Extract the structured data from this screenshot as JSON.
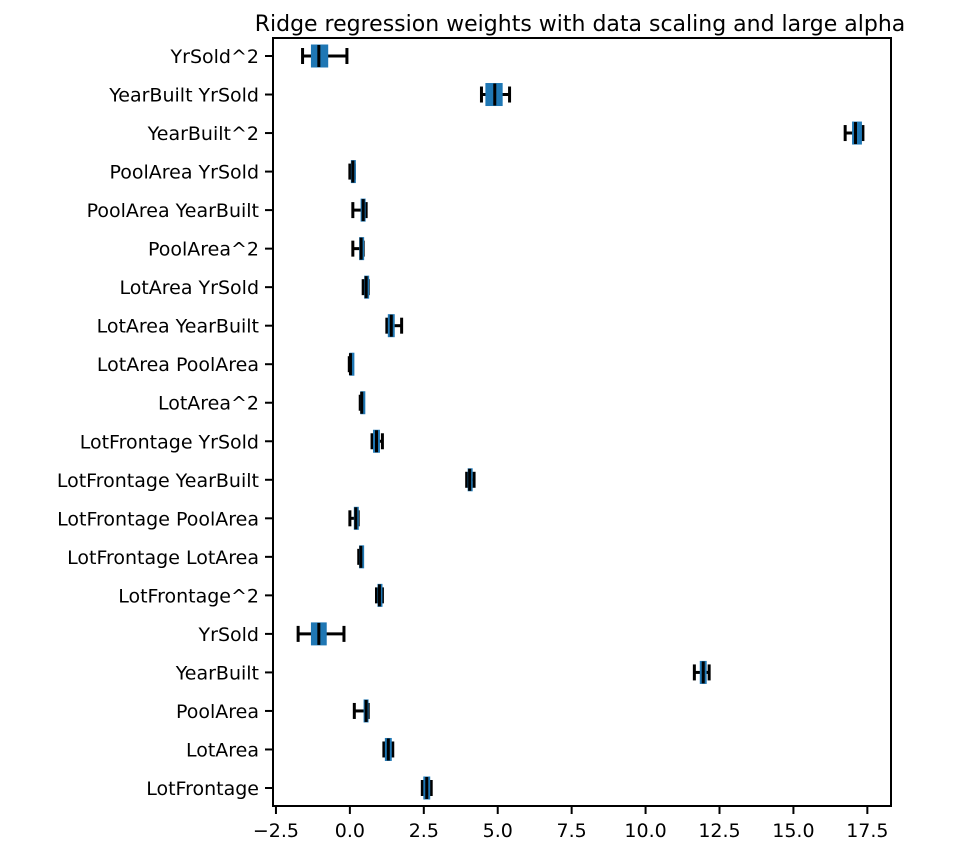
{
  "chart_data": {
    "type": "box",
    "orientation": "horizontal",
    "title": "Ridge regression weights with data scaling and large alpha",
    "xlabel": "",
    "ylabel": "",
    "xlim": [
      -2.6,
      18.3
    ],
    "xticks": [
      -2.5,
      0.0,
      2.5,
      5.0,
      7.5,
      10.0,
      12.5,
      15.0,
      17.5
    ],
    "xtick_labels": [
      "−2.5",
      "0.0",
      "2.5",
      "5.0",
      "7.5",
      "10.0",
      "12.5",
      "15.0",
      "17.5"
    ],
    "box_color": "#1f77b4",
    "whisker_color": "#000000",
    "grid": false,
    "categories": [
      {
        "name": "YrSold^2",
        "whislo": -1.6,
        "q1": -1.3,
        "med": -1.05,
        "q3": -0.75,
        "whishi": -0.1
      },
      {
        "name": "YearBuilt YrSold",
        "whislo": 4.45,
        "q1": 4.6,
        "med": 4.9,
        "q3": 5.15,
        "whishi": 5.4
      },
      {
        "name": "YearBuilt^2",
        "whislo": 16.75,
        "q1": 17.0,
        "med": 17.1,
        "q3": 17.3,
        "whishi": 17.35
      },
      {
        "name": "PoolArea YrSold",
        "whislo": 0.0,
        "q1": 0.05,
        "med": 0.1,
        "q3": 0.12,
        "whishi": 0.15
      },
      {
        "name": "PoolArea YearBuilt",
        "whislo": 0.1,
        "q1": 0.38,
        "med": 0.45,
        "q3": 0.5,
        "whishi": 0.55
      },
      {
        "name": "PoolArea^2",
        "whislo": 0.1,
        "q1": 0.33,
        "med": 0.38,
        "q3": 0.42,
        "whishi": 0.45
      },
      {
        "name": "LotArea YrSold",
        "whislo": 0.45,
        "q1": 0.5,
        "med": 0.55,
        "q3": 0.6,
        "whishi": 0.62
      },
      {
        "name": "LotArea YearBuilt",
        "whislo": 1.25,
        "q1": 1.3,
        "med": 1.4,
        "q3": 1.5,
        "whishi": 1.75
      },
      {
        "name": "LotArea PoolArea",
        "whislo": -0.02,
        "q1": 0.0,
        "med": 0.02,
        "q3": 0.04,
        "whishi": 0.06
      },
      {
        "name": "LotArea^2",
        "whislo": 0.35,
        "q1": 0.37,
        "med": 0.4,
        "q3": 0.43,
        "whishi": 0.45
      },
      {
        "name": "LotFrontage YrSold",
        "whislo": 0.75,
        "q1": 0.8,
        "med": 0.9,
        "q3": 1.0,
        "whishi": 1.1
      },
      {
        "name": "LotFrontage YearBuilt",
        "whislo": 3.95,
        "q1": 4.0,
        "med": 4.05,
        "q3": 4.12,
        "whishi": 4.2
      },
      {
        "name": "LotFrontage PoolArea",
        "whislo": 0.0,
        "q1": 0.15,
        "med": 0.2,
        "q3": 0.25,
        "whishi": 0.28
      },
      {
        "name": "LotFrontage LotArea",
        "whislo": 0.3,
        "q1": 0.33,
        "med": 0.37,
        "q3": 0.4,
        "whishi": 0.42
      },
      {
        "name": "LotFrontage^2",
        "whislo": 0.9,
        "q1": 0.95,
        "med": 1.0,
        "q3": 1.05,
        "whishi": 1.1
      },
      {
        "name": "YrSold",
        "whislo": -1.75,
        "q1": -1.3,
        "med": -1.05,
        "q3": -0.8,
        "whishi": -0.2
      },
      {
        "name": "YearBuilt",
        "whislo": 11.65,
        "q1": 11.85,
        "med": 11.95,
        "q3": 12.05,
        "whishi": 12.15
      },
      {
        "name": "PoolArea",
        "whislo": 0.15,
        "q1": 0.48,
        "med": 0.55,
        "q3": 0.6,
        "whishi": 0.62
      },
      {
        "name": "LotArea",
        "whislo": 1.15,
        "q1": 1.2,
        "med": 1.3,
        "q3": 1.4,
        "whishi": 1.45
      },
      {
        "name": "LotFrontage",
        "whislo": 2.45,
        "q1": 2.5,
        "med": 2.6,
        "q3": 2.7,
        "whishi": 2.75
      }
    ]
  }
}
